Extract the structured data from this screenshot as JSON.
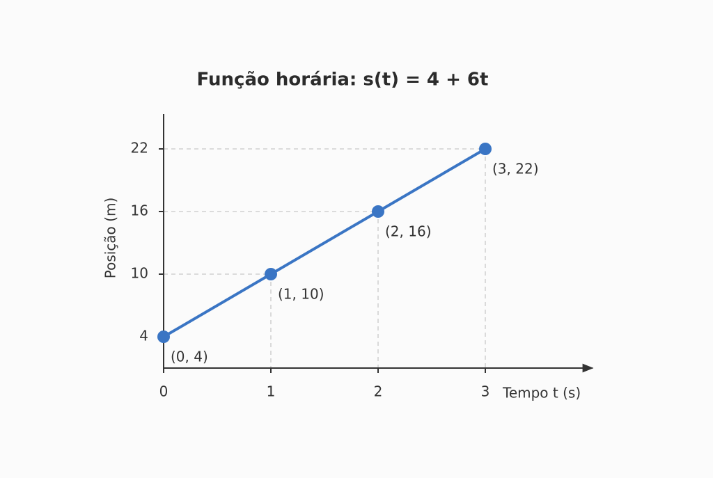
{
  "chart_data": {
    "type": "line",
    "title": "Função horária: s(t) = 4 + 6t",
    "x_label": "Tempo t (s)",
    "y_label": "Posição (m)",
    "x": [
      0,
      1,
      2,
      3
    ],
    "series": [
      {
        "color": "#3a75c4",
        "values": [
          4,
          10,
          16,
          22
        ],
        "value_labels": [
          "(0, 4)",
          "(1, 10)",
          "(2, 16)",
          "(3, 22)"
        ]
      }
    ],
    "xlim": [
      0,
      4
    ],
    "ylim": [
      1,
      25
    ],
    "xticks": [
      0,
      1,
      2,
      3
    ],
    "yticks": [
      4,
      10,
      16,
      22
    ],
    "guides": true
  }
}
